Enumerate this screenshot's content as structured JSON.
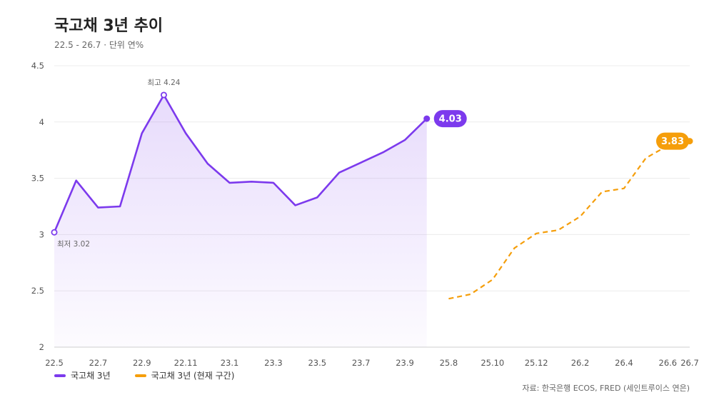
{
  "header": {
    "title": "국고채 3년 추이",
    "subtitle": "22.5 - 26.7 · 단위 연%"
  },
  "legend": [
    {
      "label": "국고채 3년",
      "color": "#7c3aed"
    },
    {
      "label": "국고채 3년 (현재 구간)",
      "color": "#f59e0b"
    }
  ],
  "source": "자료: 한국은행 ECOS, FRED (세인트루이스 연은)",
  "chart_data": {
    "type": "line",
    "ylim": [
      2,
      4.5
    ],
    "yticks": [
      "2",
      "2.5",
      "3",
      "3.5",
      "4",
      "4.5"
    ],
    "xticks": [
      "22.5",
      "22.7",
      "22.9",
      "22.11",
      "23.1",
      "23.3",
      "23.5",
      "23.7",
      "23.9",
      "25.8",
      "25.10",
      "25.12",
      "26.2",
      "26.4",
      "26.6",
      "26.7"
    ],
    "series": [
      {
        "name": "국고채 3년",
        "color": "#7c3aed",
        "x": [
          "22.5",
          "22.6",
          "22.7",
          "22.8",
          "22.9",
          "22.10",
          "22.11",
          "22.12",
          "23.1",
          "23.2",
          "23.3",
          "23.4",
          "23.5",
          "23.6",
          "23.7",
          "23.8",
          "23.9",
          "23.10"
        ],
        "values": [
          3.02,
          3.48,
          3.24,
          3.25,
          3.9,
          4.24,
          3.9,
          3.63,
          3.46,
          3.47,
          3.46,
          3.26,
          3.33,
          3.55,
          3.64,
          3.73,
          3.84,
          4.03
        ]
      },
      {
        "name": "국고채 3년 (현재 구간)",
        "color": "#f59e0b",
        "x": [
          "25.8",
          "25.9",
          "25.10",
          "25.11",
          "25.12",
          "26.1",
          "26.2",
          "26.3",
          "26.4",
          "26.5",
          "26.6",
          "26.7"
        ],
        "values": [
          2.43,
          2.47,
          2.6,
          2.88,
          3.01,
          3.04,
          3.16,
          3.38,
          3.41,
          3.68,
          3.79,
          3.83
        ]
      }
    ],
    "annotations": {
      "max_label": "최고 4.24",
      "min_label": "최저 3.02",
      "end_label_1": "4.03",
      "end_label_2": "3.83"
    }
  }
}
